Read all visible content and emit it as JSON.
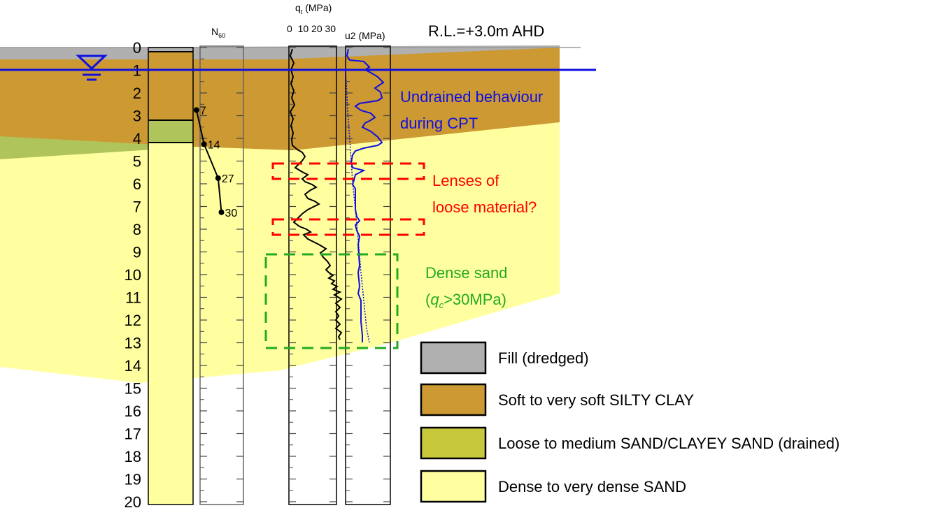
{
  "header": {
    "rl": "R.L.=+3.0m AHD",
    "n60_label": "N",
    "n60_sub": "60",
    "qt_label": "q",
    "qt_sub": "t",
    "qt_unit": " (MPa)",
    "qt_ticks": "0  10 20 30",
    "u2_label": "u2 (MPa)"
  },
  "depths": [
    "0",
    "1",
    "2",
    "3",
    "4",
    "5",
    "6",
    "7",
    "8",
    "9",
    "10",
    "11",
    "12",
    "13",
    "14",
    "15",
    "16",
    "17",
    "18",
    "19",
    "20"
  ],
  "spt": [
    {
      "depth": 3.0,
      "n": 7,
      "label": "7"
    },
    {
      "depth": 4.5,
      "n": 14,
      "label": "14"
    },
    {
      "depth": 6.0,
      "n": 27,
      "label": "27"
    },
    {
      "depth": 7.5,
      "n": 30,
      "label": "30"
    }
  ],
  "annotations": {
    "undrained_line1": "Undrained behaviour",
    "undrained_line2": "during CPT",
    "lenses_line1": "Lenses of",
    "lenses_line2": "loose material?",
    "dense_line1": "Dense sand",
    "dense_line2_q": "q",
    "dense_line2_sub": "c",
    "dense_line2_rest": ">30MPa)",
    "dense_line2_open": "("
  },
  "legend": [
    {
      "label": "Fill (dredged)",
      "color": "#b0b0b0"
    },
    {
      "label": "Soft to very soft SILTY CLAY",
      "color": "#cc9933"
    },
    {
      "label": "Loose to medium SAND/CLAYEY SAND (drained)",
      "color": "#c8c83c"
    },
    {
      "label": "Dense to very dense SAND",
      "color": "#ffffa0"
    }
  ],
  "colors": {
    "fill": "#b0b0b0",
    "clay": "#cc9933",
    "loose_sand": "#afc45a",
    "dense_sand": "#ffffa0",
    "water": "#1010e0",
    "lenses": "#ff0000",
    "dense_box": "#22aa22"
  }
}
